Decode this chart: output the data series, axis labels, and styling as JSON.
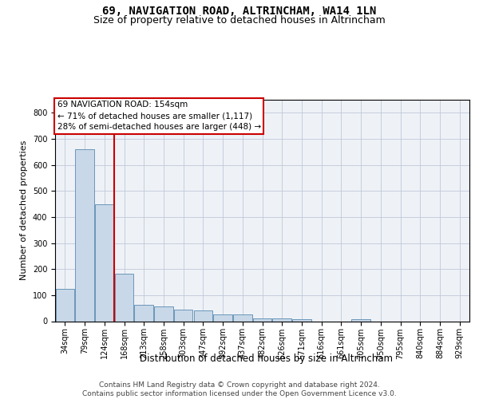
{
  "title": "69, NAVIGATION ROAD, ALTRINCHAM, WA14 1LN",
  "subtitle": "Size of property relative to detached houses in Altrincham",
  "xlabel": "Distribution of detached houses by size in Altrincham",
  "ylabel": "Number of detached properties",
  "categories": [
    "34sqm",
    "79sqm",
    "124sqm",
    "168sqm",
    "213sqm",
    "258sqm",
    "303sqm",
    "347sqm",
    "392sqm",
    "437sqm",
    "482sqm",
    "526sqm",
    "571sqm",
    "616sqm",
    "661sqm",
    "705sqm",
    "750sqm",
    "795sqm",
    "840sqm",
    "884sqm",
    "929sqm"
  ],
  "values": [
    125,
    660,
    450,
    183,
    62,
    57,
    45,
    42,
    25,
    25,
    12,
    12,
    7,
    0,
    0,
    8,
    0,
    0,
    0,
    0,
    0
  ],
  "bar_color": "#c8d8e8",
  "bar_edge_color": "#5a8ab0",
  "vline_x": 2.5,
  "vline_color": "#cc0000",
  "annotation_text": "69 NAVIGATION ROAD: 154sqm\n← 71% of detached houses are smaller (1,117)\n28% of semi-detached houses are larger (448) →",
  "annotation_box_color": "#cc0000",
  "annotation_text_color": "#000000",
  "ylim": [
    0,
    850
  ],
  "yticks": [
    0,
    100,
    200,
    300,
    400,
    500,
    600,
    700,
    800
  ],
  "grid_color": "#c0c8d8",
  "background_color": "#eef2f7",
  "footer_text": "Contains HM Land Registry data © Crown copyright and database right 2024.\nContains public sector information licensed under the Open Government Licence v3.0.",
  "title_fontsize": 10,
  "subtitle_fontsize": 9,
  "xlabel_fontsize": 8.5,
  "ylabel_fontsize": 8,
  "tick_fontsize": 7,
  "annotation_fontsize": 7.5,
  "footer_fontsize": 6.5
}
